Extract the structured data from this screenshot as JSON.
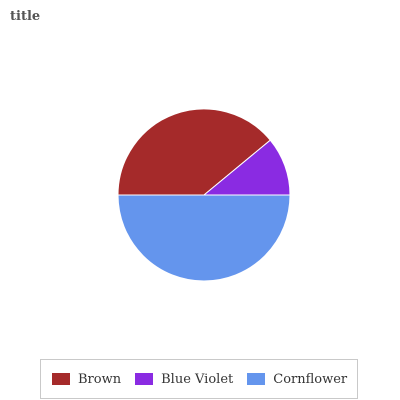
{
  "chart_data": {
    "type": "pie",
    "title": "title",
    "categories": [
      "Brown",
      "Blue Violet",
      "Cornflower"
    ],
    "values": [
      39,
      11,
      50
    ],
    "colors": [
      "#a52a2a",
      "#8a2be2",
      "#6495ed"
    ],
    "legend": "bottom"
  }
}
